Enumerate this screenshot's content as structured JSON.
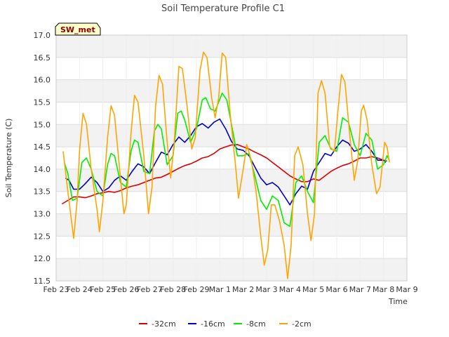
{
  "chart_data": {
    "type": "line",
    "title": "Soil Temperature Profile C1",
    "xlabel": "Time",
    "ylabel": "Soil Temperature (C)",
    "badge": "SW_met",
    "ylim": [
      11.5,
      17.0
    ],
    "xlim": [
      0,
      15
    ],
    "yticks": [
      11.5,
      12.0,
      12.5,
      13.0,
      13.5,
      14.0,
      14.5,
      15.0,
      15.5,
      16.0,
      16.5,
      17.0
    ],
    "xticks": [
      {
        "x": 0,
        "label": "Feb 23"
      },
      {
        "x": 1,
        "label": "Feb 24"
      },
      {
        "x": 2,
        "label": "Feb 25"
      },
      {
        "x": 3,
        "label": "Feb 26"
      },
      {
        "x": 4,
        "label": "Feb 27"
      },
      {
        "x": 5,
        "label": "Feb 28"
      },
      {
        "x": 6,
        "label": "Feb 29"
      },
      {
        "x": 7,
        "label": "Mar 1"
      },
      {
        "x": 8,
        "label": "Mar 2"
      },
      {
        "x": 9,
        "label": "Mar 3"
      },
      {
        "x": 10,
        "label": "Mar 4"
      },
      {
        "x": 11,
        "label": "Mar 5"
      },
      {
        "x": 12,
        "label": "Mar 6"
      },
      {
        "x": 13,
        "label": "Mar 7"
      },
      {
        "x": 14,
        "label": "Mar 8"
      },
      {
        "x": 15,
        "label": "Mar 9"
      }
    ],
    "grid": true,
    "legend_position": "bottom",
    "series": [
      {
        "name": "-32cm",
        "color": "#dd0000",
        "points": [
          [
            0.25,
            13.22
          ],
          [
            0.5,
            13.3
          ],
          [
            0.75,
            13.38
          ],
          [
            1.0,
            13.38
          ],
          [
            1.25,
            13.36
          ],
          [
            1.5,
            13.4
          ],
          [
            1.75,
            13.45
          ],
          [
            2.0,
            13.47
          ],
          [
            2.25,
            13.5
          ],
          [
            2.5,
            13.48
          ],
          [
            2.75,
            13.52
          ],
          [
            3.0,
            13.58
          ],
          [
            3.25,
            13.62
          ],
          [
            3.5,
            13.65
          ],
          [
            3.75,
            13.7
          ],
          [
            4.0,
            13.75
          ],
          [
            4.25,
            13.8
          ],
          [
            4.5,
            13.82
          ],
          [
            4.75,
            13.88
          ],
          [
            5.0,
            13.95
          ],
          [
            5.25,
            14.02
          ],
          [
            5.5,
            14.08
          ],
          [
            5.75,
            14.12
          ],
          [
            6.0,
            14.18
          ],
          [
            6.25,
            14.25
          ],
          [
            6.5,
            14.28
          ],
          [
            6.75,
            14.35
          ],
          [
            7.0,
            14.45
          ],
          [
            7.25,
            14.5
          ],
          [
            7.5,
            14.54
          ],
          [
            7.75,
            14.55
          ],
          [
            8.0,
            14.5
          ],
          [
            8.25,
            14.45
          ],
          [
            8.5,
            14.38
          ],
          [
            8.75,
            14.32
          ],
          [
            9.0,
            14.25
          ],
          [
            9.25,
            14.15
          ],
          [
            9.5,
            14.05
          ],
          [
            9.75,
            13.95
          ],
          [
            10.0,
            13.85
          ],
          [
            10.25,
            13.78
          ],
          [
            10.5,
            13.72
          ],
          [
            10.75,
            13.72
          ],
          [
            11.0,
            13.78
          ],
          [
            11.25,
            13.75
          ],
          [
            11.5,
            13.85
          ],
          [
            11.75,
            13.95
          ],
          [
            12.0,
            14.02
          ],
          [
            12.25,
            14.08
          ],
          [
            12.5,
            14.12
          ],
          [
            12.75,
            14.18
          ],
          [
            13.0,
            14.25
          ],
          [
            13.25,
            14.25
          ],
          [
            13.5,
            14.28
          ],
          [
            13.75,
            14.25
          ],
          [
            14.0,
            14.2
          ],
          [
            14.15,
            14.18
          ]
        ]
      },
      {
        "name": "-16cm",
        "color": "#0000cc",
        "points": [
          [
            0.4,
            13.8
          ],
          [
            0.55,
            13.75
          ],
          [
            0.75,
            13.55
          ],
          [
            1.0,
            13.55
          ],
          [
            1.2,
            13.65
          ],
          [
            1.5,
            13.82
          ],
          [
            1.75,
            13.7
          ],
          [
            2.0,
            13.5
          ],
          [
            2.25,
            13.58
          ],
          [
            2.5,
            13.75
          ],
          [
            2.75,
            13.85
          ],
          [
            3.0,
            13.75
          ],
          [
            3.25,
            13.95
          ],
          [
            3.5,
            14.12
          ],
          [
            3.75,
            14.05
          ],
          [
            4.0,
            13.9
          ],
          [
            4.25,
            14.15
          ],
          [
            4.5,
            14.38
          ],
          [
            4.75,
            14.32
          ],
          [
            5.0,
            14.55
          ],
          [
            5.25,
            14.72
          ],
          [
            5.5,
            14.6
          ],
          [
            5.75,
            14.75
          ],
          [
            6.0,
            14.95
          ],
          [
            6.25,
            15.02
          ],
          [
            6.5,
            14.92
          ],
          [
            6.75,
            15.05
          ],
          [
            7.0,
            15.12
          ],
          [
            7.25,
            14.9
          ],
          [
            7.5,
            14.62
          ],
          [
            7.75,
            14.45
          ],
          [
            8.0,
            14.42
          ],
          [
            8.25,
            14.3
          ],
          [
            8.5,
            14.05
          ],
          [
            8.75,
            13.8
          ],
          [
            9.0,
            13.65
          ],
          [
            9.25,
            13.7
          ],
          [
            9.5,
            13.6
          ],
          [
            9.75,
            13.4
          ],
          [
            10.0,
            13.2
          ],
          [
            10.25,
            13.45
          ],
          [
            10.5,
            13.62
          ],
          [
            10.75,
            13.55
          ],
          [
            11.0,
            13.95
          ],
          [
            11.25,
            14.15
          ],
          [
            11.5,
            14.35
          ],
          [
            11.75,
            14.3
          ],
          [
            12.0,
            14.5
          ],
          [
            12.25,
            14.65
          ],
          [
            12.5,
            14.58
          ],
          [
            12.75,
            14.4
          ],
          [
            13.0,
            14.45
          ],
          [
            13.25,
            14.55
          ],
          [
            13.5,
            14.4
          ],
          [
            13.75,
            14.2
          ],
          [
            14.0,
            14.2
          ],
          [
            14.1,
            14.15
          ]
        ]
      },
      {
        "name": "-8cm",
        "color": "#00ee00",
        "points": [
          [
            0.35,
            14.15
          ],
          [
            0.5,
            13.9
          ],
          [
            0.7,
            13.3
          ],
          [
            0.9,
            13.35
          ],
          [
            1.1,
            14.15
          ],
          [
            1.3,
            14.25
          ],
          [
            1.5,
            14.0
          ],
          [
            1.75,
            13.5
          ],
          [
            2.0,
            13.4
          ],
          [
            2.2,
            14.1
          ],
          [
            2.35,
            14.35
          ],
          [
            2.5,
            14.3
          ],
          [
            2.75,
            13.7
          ],
          [
            3.0,
            13.6
          ],
          [
            3.2,
            14.4
          ],
          [
            3.35,
            14.65
          ],
          [
            3.5,
            14.6
          ],
          [
            3.75,
            13.95
          ],
          [
            4.0,
            13.9
          ],
          [
            4.2,
            14.85
          ],
          [
            4.35,
            15.0
          ],
          [
            4.5,
            14.9
          ],
          [
            4.75,
            14.1
          ],
          [
            5.0,
            14.3
          ],
          [
            5.2,
            15.25
          ],
          [
            5.35,
            15.3
          ],
          [
            5.5,
            15.1
          ],
          [
            5.75,
            14.6
          ],
          [
            6.0,
            14.9
          ],
          [
            6.25,
            15.55
          ],
          [
            6.4,
            15.6
          ],
          [
            6.6,
            15.35
          ],
          [
            6.8,
            15.3
          ],
          [
            7.1,
            15.7
          ],
          [
            7.3,
            15.55
          ],
          [
            7.5,
            15.0
          ],
          [
            7.75,
            14.3
          ],
          [
            8.0,
            14.3
          ],
          [
            8.25,
            14.35
          ],
          [
            8.5,
            13.85
          ],
          [
            8.75,
            13.3
          ],
          [
            9.0,
            13.1
          ],
          [
            9.25,
            13.4
          ],
          [
            9.5,
            13.3
          ],
          [
            9.75,
            12.8
          ],
          [
            10.0,
            12.72
          ],
          [
            10.25,
            13.7
          ],
          [
            10.5,
            13.85
          ],
          [
            10.75,
            13.5
          ],
          [
            11.0,
            13.25
          ],
          [
            11.25,
            14.6
          ],
          [
            11.5,
            14.75
          ],
          [
            11.75,
            14.45
          ],
          [
            12.0,
            14.4
          ],
          [
            12.25,
            15.15
          ],
          [
            12.5,
            15.05
          ],
          [
            12.75,
            14.55
          ],
          [
            13.0,
            14.3
          ],
          [
            13.25,
            14.8
          ],
          [
            13.5,
            14.65
          ],
          [
            13.75,
            14.0
          ],
          [
            14.0,
            14.1
          ],
          [
            14.15,
            14.3
          ],
          [
            14.25,
            14.2
          ]
        ]
      },
      {
        "name": "-2cm",
        "color": "#ffa500",
        "points": [
          [
            0.3,
            14.4
          ],
          [
            0.5,
            13.5
          ],
          [
            0.75,
            12.45
          ],
          [
            0.9,
            13.3
          ],
          [
            1.0,
            14.4
          ],
          [
            1.15,
            15.25
          ],
          [
            1.3,
            15.0
          ],
          [
            1.5,
            14.0
          ],
          [
            1.75,
            13.1
          ],
          [
            1.85,
            12.6
          ],
          [
            2.0,
            13.3
          ],
          [
            2.2,
            14.7
          ],
          [
            2.35,
            15.42
          ],
          [
            2.5,
            15.2
          ],
          [
            2.75,
            13.8
          ],
          [
            2.9,
            13.0
          ],
          [
            3.0,
            13.2
          ],
          [
            3.2,
            14.8
          ],
          [
            3.35,
            15.65
          ],
          [
            3.5,
            15.5
          ],
          [
            3.75,
            14.3
          ],
          [
            3.95,
            13.0
          ],
          [
            4.1,
            13.6
          ],
          [
            4.25,
            15.4
          ],
          [
            4.4,
            16.1
          ],
          [
            4.55,
            15.9
          ],
          [
            4.75,
            14.6
          ],
          [
            4.9,
            13.8
          ],
          [
            5.05,
            14.6
          ],
          [
            5.25,
            16.3
          ],
          [
            5.4,
            16.25
          ],
          [
            5.6,
            15.4
          ],
          [
            5.8,
            14.45
          ],
          [
            5.95,
            14.7
          ],
          [
            6.15,
            16.2
          ],
          [
            6.3,
            16.62
          ],
          [
            6.45,
            16.5
          ],
          [
            6.65,
            15.6
          ],
          [
            6.8,
            15.15
          ],
          [
            6.95,
            15.6
          ],
          [
            7.1,
            16.6
          ],
          [
            7.25,
            16.5
          ],
          [
            7.45,
            15.2
          ],
          [
            7.65,
            14.2
          ],
          [
            7.8,
            13.35
          ],
          [
            8.0,
            14.0
          ],
          [
            8.15,
            14.55
          ],
          [
            8.35,
            14.2
          ],
          [
            8.55,
            13.5
          ],
          [
            8.75,
            12.5
          ],
          [
            8.9,
            11.85
          ],
          [
            9.05,
            12.2
          ],
          [
            9.2,
            13.2
          ],
          [
            9.35,
            13.2
          ],
          [
            9.55,
            12.85
          ],
          [
            9.75,
            12.3
          ],
          [
            9.9,
            11.55
          ],
          [
            10.05,
            12.3
          ],
          [
            10.2,
            14.3
          ],
          [
            10.35,
            14.5
          ],
          [
            10.55,
            14.1
          ],
          [
            10.75,
            13.0
          ],
          [
            10.9,
            12.4
          ],
          [
            11.05,
            13.0
          ],
          [
            11.2,
            15.7
          ],
          [
            11.35,
            15.98
          ],
          [
            11.5,
            15.7
          ],
          [
            11.7,
            14.5
          ],
          [
            11.9,
            14.4
          ],
          [
            12.05,
            15.3
          ],
          [
            12.2,
            16.12
          ],
          [
            12.35,
            15.95
          ],
          [
            12.55,
            14.8
          ],
          [
            12.75,
            13.75
          ],
          [
            12.9,
            14.2
          ],
          [
            13.05,
            15.3
          ],
          [
            13.15,
            15.43
          ],
          [
            13.3,
            15.1
          ],
          [
            13.5,
            14.1
          ],
          [
            13.7,
            13.45
          ],
          [
            13.85,
            13.6
          ],
          [
            13.95,
            14.1
          ],
          [
            14.05,
            14.6
          ],
          [
            14.15,
            14.5
          ],
          [
            14.25,
            14.15
          ]
        ]
      }
    ]
  }
}
